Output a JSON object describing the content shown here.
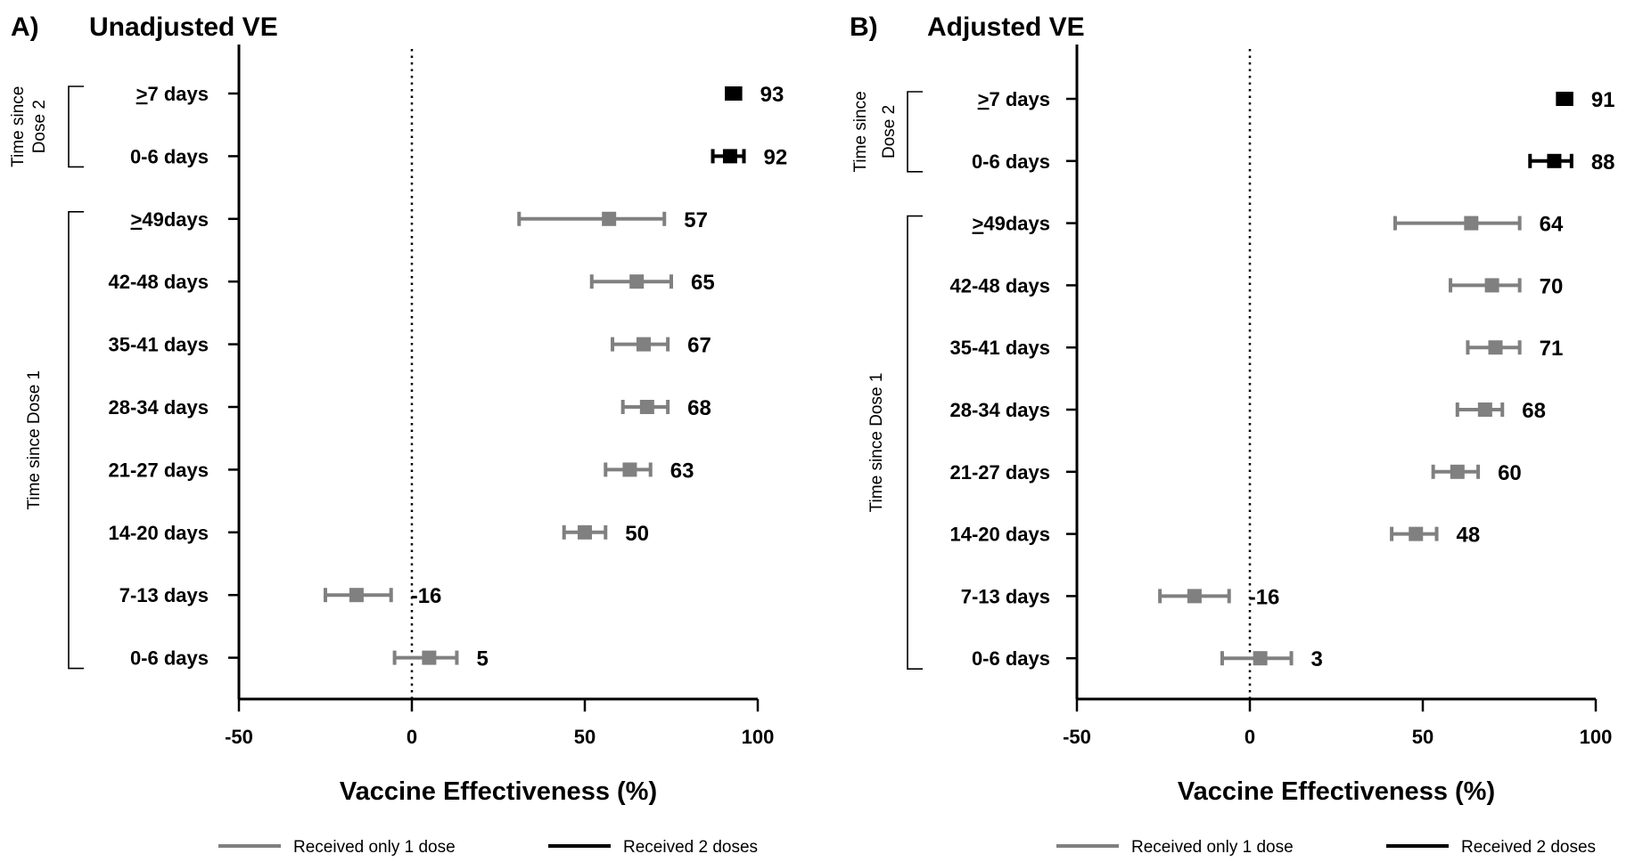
{
  "colors": {
    "one_dose": "#808080",
    "two_doses": "#000000"
  },
  "chart_data": [
    {
      "type": "forest",
      "panel": "A)",
      "title": "Unadjusted VE",
      "xlabel": "Vaccine Effectiveness (%)",
      "xlim": [
        -50,
        100
      ],
      "xticks": [
        "-50",
        "0",
        "50",
        "100"
      ],
      "reference_line": 0,
      "groups": [
        {
          "label_line1": "Time since",
          "label_line2": "Dose 2",
          "first": 0,
          "last": 1
        },
        {
          "label_line1": "Time since Dose 1",
          "label_line2": "",
          "first": 2,
          "last": 9
        }
      ],
      "rows": [
        {
          "prefix": ">",
          "label": "7 days",
          "value": 93,
          "ci": [
            91,
            95
          ],
          "series": "two_doses",
          "value_label": "93"
        },
        {
          "prefix": "",
          "label": "0-6 days",
          "value": 92,
          "ci": [
            87,
            96
          ],
          "series": "two_doses",
          "value_label": "92"
        },
        {
          "prefix": ">",
          "label": "49days",
          "value": 57,
          "ci": [
            31,
            73
          ],
          "series": "one_dose",
          "value_label": "57"
        },
        {
          "prefix": "",
          "label": "42-48 days",
          "value": 65,
          "ci": [
            52,
            75
          ],
          "series": "one_dose",
          "value_label": "65"
        },
        {
          "prefix": "",
          "label": "35-41 days",
          "value": 67,
          "ci": [
            58,
            74
          ],
          "series": "one_dose",
          "value_label": "67"
        },
        {
          "prefix": "",
          "label": "28-34 days",
          "value": 68,
          "ci": [
            61,
            74
          ],
          "series": "one_dose",
          "value_label": "68"
        },
        {
          "prefix": "",
          "label": "21-27 days",
          "value": 63,
          "ci": [
            56,
            69
          ],
          "series": "one_dose",
          "value_label": "63"
        },
        {
          "prefix": "",
          "label": "14-20 days",
          "value": 50,
          "ci": [
            44,
            56
          ],
          "series": "one_dose",
          "value_label": "50"
        },
        {
          "prefix": "",
          "label": "7-13 days",
          "value": -16,
          "ci": [
            -25,
            -6
          ],
          "series": "one_dose",
          "value_label": "-16"
        },
        {
          "prefix": "",
          "label": "0-6 days",
          "value": 5,
          "ci": [
            -5,
            13
          ],
          "series": "one_dose",
          "value_label": "5"
        }
      ]
    },
    {
      "type": "forest",
      "panel": "B)",
      "title": "Adjusted VE",
      "xlabel": "Vaccine Effectiveness (%)",
      "xlim": [
        -50,
        100
      ],
      "xticks": [
        "-50",
        "0",
        "50",
        "100"
      ],
      "reference_line": 0,
      "groups": [
        {
          "label_line1": "Time since",
          "label_line2": "Dose 2",
          "first": 0,
          "last": 1
        },
        {
          "label_line1": "Time since Dose 1",
          "label_line2": "",
          "first": 2,
          "last": 9
        }
      ],
      "rows": [
        {
          "prefix": ">",
          "label": "7 days",
          "value": 91,
          "ci": [
            89,
            93
          ],
          "series": "two_doses",
          "value_label": "91"
        },
        {
          "prefix": "",
          "label": "0-6 days",
          "value": 88,
          "ci": [
            81,
            93
          ],
          "series": "two_doses",
          "value_label": "88"
        },
        {
          "prefix": ">",
          "label": "49days",
          "value": 64,
          "ci": [
            42,
            78
          ],
          "series": "one_dose",
          "value_label": "64"
        },
        {
          "prefix": "",
          "label": "42-48 days",
          "value": 70,
          "ci": [
            58,
            78
          ],
          "series": "one_dose",
          "value_label": "70"
        },
        {
          "prefix": "",
          "label": "35-41 days",
          "value": 71,
          "ci": [
            63,
            78
          ],
          "series": "one_dose",
          "value_label": "71"
        },
        {
          "prefix": "",
          "label": "28-34 days",
          "value": 68,
          "ci": [
            60,
            73
          ],
          "series": "one_dose",
          "value_label": "68"
        },
        {
          "prefix": "",
          "label": "21-27 days",
          "value": 60,
          "ci": [
            53,
            66
          ],
          "series": "one_dose",
          "value_label": "60"
        },
        {
          "prefix": "",
          "label": "14-20 days",
          "value": 48,
          "ci": [
            41,
            54
          ],
          "series": "one_dose",
          "value_label": "48"
        },
        {
          "prefix": "",
          "label": "7-13 days",
          "value": -16,
          "ci": [
            -26,
            -6
          ],
          "series": "one_dose",
          "value_label": "-16"
        },
        {
          "prefix": "",
          "label": "0-6 days",
          "value": 3,
          "ci": [
            -8,
            12
          ],
          "series": "one_dose",
          "value_label": "3"
        }
      ]
    }
  ],
  "legend": [
    {
      "series": "one_dose",
      "label": "Received only 1 dose"
    },
    {
      "series": "two_doses",
      "label": "Received 2 doses"
    }
  ]
}
